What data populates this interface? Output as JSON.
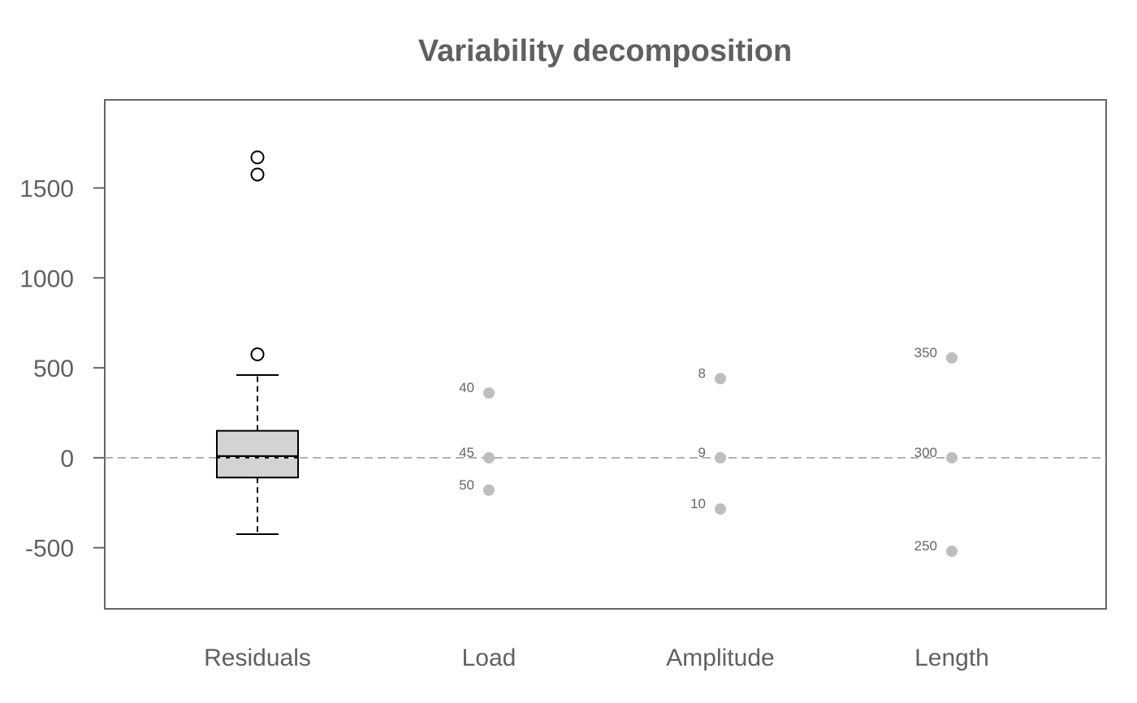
{
  "chart_data": {
    "type": "boxplot+dotplot",
    "title": "Variability decomposition",
    "ylim": [
      -840,
      1990
    ],
    "yticks": [
      -500,
      0,
      500,
      1000,
      1500
    ],
    "ytick_labels": [
      "-500",
      "0",
      "500",
      "1000",
      "1500"
    ],
    "categories": [
      "Residuals",
      "Load",
      "Amplitude",
      "Length"
    ],
    "reference_line": 0,
    "residuals_box": {
      "whisker_low": -425,
      "q1": -110,
      "median": 5,
      "mean": 0,
      "q3": 150,
      "whisker_high": 460,
      "outliers": [
        575,
        1575,
        1670
      ]
    },
    "factor_effects": [
      {
        "factor": "Load",
        "levels": [
          {
            "label": "40",
            "value": 360
          },
          {
            "label": "45",
            "value": 0
          },
          {
            "label": "50",
            "value": -180
          }
        ]
      },
      {
        "factor": "Amplitude",
        "levels": [
          {
            "label": "8",
            "value": 440
          },
          {
            "label": "9",
            "value": 0
          },
          {
            "label": "10",
            "value": -285
          }
        ]
      },
      {
        "factor": "Length",
        "levels": [
          {
            "label": "350",
            "value": 555
          },
          {
            "label": "300",
            "value": 0
          },
          {
            "label": "250",
            "value": -520
          }
        ]
      }
    ],
    "colors": {
      "text": "#606060",
      "frame": "#666666",
      "box_fill": "#d3d3d3",
      "points": "#bebebe",
      "reference": "#a0a0a0"
    }
  }
}
